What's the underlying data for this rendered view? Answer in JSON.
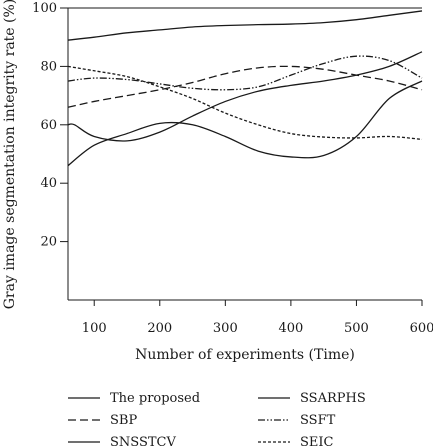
{
  "chart_data": {
    "type": "line",
    "xlabel": "Number of experiments (Time)",
    "ylabel": "Gray image segmentation integrity rate (%)",
    "xlim": [
      60,
      600
    ],
    "ylim": [
      0,
      100
    ],
    "xticks": [
      100,
      200,
      300,
      400,
      500,
      600
    ],
    "yticks": [
      20,
      40,
      60,
      80,
      100
    ],
    "grid": false,
    "legend_position": "bottom",
    "series": [
      {
        "name": "The proposed",
        "style": "solid",
        "color": "#1a1a1a",
        "x": [
          60,
          100,
          150,
          200,
          250,
          300,
          350,
          400,
          450,
          500,
          550,
          600
        ],
        "y": [
          89,
          90,
          91.5,
          92.5,
          93.5,
          94,
          94.3,
          94.5,
          95,
          96,
          97.5,
          99
        ]
      },
      {
        "name": "SSARPHS",
        "style": "solid",
        "color": "#1a1a1a",
        "x": [
          60,
          100,
          150,
          200,
          250,
          300,
          350,
          400,
          450,
          500,
          550,
          600
        ],
        "y": [
          46,
          53,
          57,
          60.5,
          60,
          56,
          51,
          49,
          49.5,
          56,
          69,
          75
        ]
      },
      {
        "name": "SBP",
        "style": "dashed",
        "color": "#1a1a1a",
        "x": [
          60,
          100,
          150,
          200,
          250,
          300,
          350,
          400,
          450,
          500,
          550,
          600
        ],
        "y": [
          66,
          68,
          70,
          72,
          74.5,
          77.5,
          79.5,
          80,
          79,
          77,
          75,
          72
        ]
      },
      {
        "name": "SSFT",
        "style": "dashdot",
        "color": "#1a1a1a",
        "x": [
          60,
          100,
          150,
          200,
          250,
          300,
          350,
          400,
          450,
          500,
          550,
          600
        ],
        "y": [
          75,
          76,
          75.5,
          74,
          72.5,
          72,
          73,
          77,
          81,
          83.5,
          82,
          76
        ]
      },
      {
        "name": "SNSSTCV",
        "style": "solid",
        "color": "#1a1a1a",
        "x": [
          60,
          70,
          100,
          150,
          200,
          250,
          300,
          350,
          400,
          450,
          500,
          550,
          600
        ],
        "y": [
          60,
          60,
          56,
          54.5,
          57.5,
          63,
          68,
          71.5,
          73.5,
          75,
          77,
          80,
          85
        ]
      },
      {
        "name": "SEIC",
        "style": "dotted-dash",
        "color": "#1a1a1a",
        "x": [
          60,
          100,
          150,
          200,
          250,
          300,
          350,
          400,
          450,
          500,
          550,
          600
        ],
        "y": [
          80,
          78.5,
          76.5,
          73,
          69,
          64,
          60,
          57,
          55.8,
          55.5,
          56,
          55
        ]
      }
    ]
  }
}
